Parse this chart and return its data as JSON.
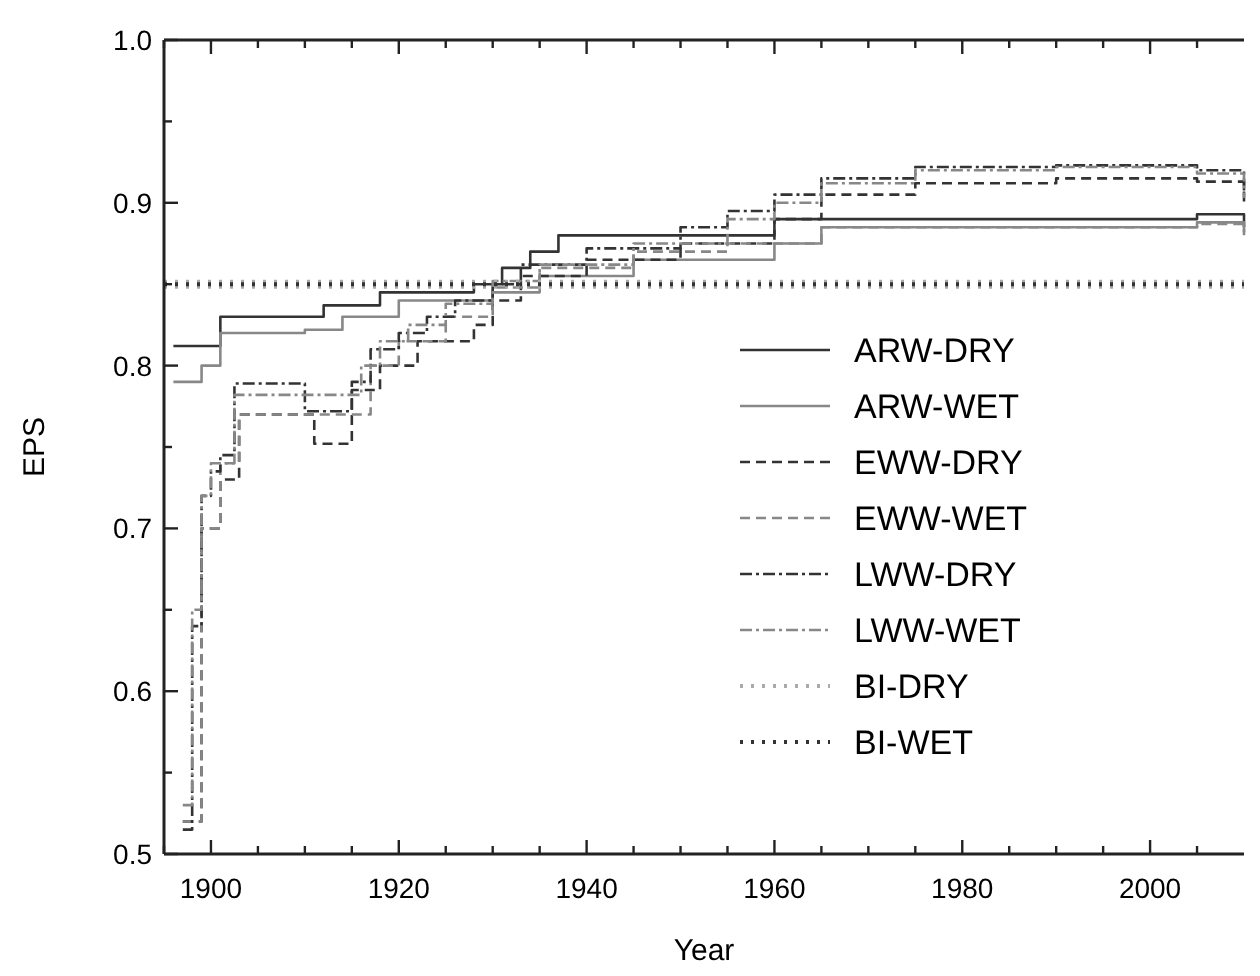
{
  "chart_data": {
    "type": "step",
    "xlabel": "Year",
    "ylabel": "EPS",
    "xlim": [
      1895,
      2010
    ],
    "ylim": [
      0.5,
      1.0
    ],
    "xticks": [
      {
        "value": 1895,
        "label": null
      },
      1900,
      {
        "value": 1905,
        "label": null
      },
      {
        "value": 1910,
        "label": null
      },
      {
        "value": 1915,
        "label": null
      },
      1920,
      {
        "value": 1925,
        "label": null
      },
      {
        "value": 1930,
        "label": null
      },
      {
        "value": 1935,
        "label": null
      },
      1940,
      {
        "value": 1945,
        "label": null
      },
      {
        "value": 1950,
        "label": null
      },
      {
        "value": 1955,
        "label": null
      },
      1960,
      {
        "value": 1965,
        "label": null
      },
      {
        "value": 1970,
        "label": null
      },
      {
        "value": 1975,
        "label": null
      },
      1980,
      {
        "value": 1985,
        "label": null
      },
      {
        "value": 1990,
        "label": null
      },
      {
        "value": 1995,
        "label": null
      },
      2000,
      {
        "value": 2005,
        "label": null
      }
    ],
    "yticks": [
      0.5,
      {
        "value": 0.55,
        "label": null
      },
      0.6,
      {
        "value": 0.65,
        "label": null
      },
      0.7,
      {
        "value": 0.75,
        "label": null
      },
      0.8,
      {
        "value": 0.85,
        "label": null
      },
      0.9,
      {
        "value": 0.95,
        "label": null
      },
      {
        "value": 1.0,
        "label": "1.0"
      }
    ],
    "grid": false,
    "legend": "right",
    "series": [
      {
        "name": "ARW-DRY",
        "color": "#333333",
        "line_style": "solid",
        "x": [
          1896,
          1900,
          1901,
          1910,
          1912,
          1918,
          1928,
          1931,
          1934,
          1937,
          1950,
          1960,
          2005,
          2010
        ],
        "values": [
          0.812,
          0.812,
          0.83,
          0.83,
          0.837,
          0.845,
          0.85,
          0.86,
          0.87,
          0.88,
          0.88,
          0.89,
          0.893,
          0.885
        ]
      },
      {
        "name": "ARW-WET",
        "color": "#888888",
        "line_style": "solid",
        "x": [
          1896,
          1899,
          1901,
          1910,
          1914,
          1920,
          1930,
          1935,
          1945,
          1960,
          1965,
          2005,
          2010
        ],
        "values": [
          0.79,
          0.8,
          0.82,
          0.822,
          0.83,
          0.84,
          0.845,
          0.855,
          0.865,
          0.875,
          0.885,
          0.888,
          0.882
        ]
      },
      {
        "name": "EWW-DRY",
        "color": "#333333",
        "line_style": "dashed",
        "x": [
          1897,
          1899,
          1901,
          1903,
          1910,
          1911,
          1913,
          1915,
          1918,
          1922,
          1928,
          1930,
          1933,
          1940,
          1950,
          1960,
          1965,
          1975,
          1990,
          2005,
          2010
        ],
        "values": [
          0.52,
          0.7,
          0.73,
          0.77,
          0.77,
          0.752,
          0.752,
          0.785,
          0.8,
          0.815,
          0.825,
          0.84,
          0.855,
          0.865,
          0.875,
          0.89,
          0.905,
          0.912,
          0.915,
          0.913,
          0.9
        ]
      },
      {
        "name": "EWW-WET",
        "color": "#888888",
        "line_style": "dashed",
        "x": [
          1897,
          1899,
          1901,
          1903,
          1915,
          1917,
          1920,
          1925,
          1930,
          1935,
          1945,
          1955,
          1965,
          2005,
          2010
        ],
        "values": [
          0.52,
          0.7,
          0.74,
          0.77,
          0.77,
          0.8,
          0.815,
          0.83,
          0.848,
          0.86,
          0.87,
          0.875,
          0.885,
          0.887,
          0.88
        ]
      },
      {
        "name": "LWW-DRY",
        "color": "#333333",
        "line_style": "dashdot",
        "x": [
          1897,
          1898,
          1899,
          1900,
          1901,
          1902.5,
          1909,
          1910,
          1914,
          1915,
          1917,
          1920,
          1923,
          1926,
          1930,
          1933,
          1940,
          1950,
          1955,
          1960,
          1965,
          1975,
          1990,
          2005,
          2010
        ],
        "values": [
          0.515,
          0.64,
          0.72,
          0.735,
          0.745,
          0.789,
          0.789,
          0.772,
          0.772,
          0.79,
          0.81,
          0.82,
          0.83,
          0.84,
          0.85,
          0.862,
          0.872,
          0.885,
          0.895,
          0.905,
          0.915,
          0.922,
          0.923,
          0.92,
          0.905
        ]
      },
      {
        "name": "LWW-WET",
        "color": "#888888",
        "line_style": "dashdot",
        "x": [
          1897,
          1898,
          1899,
          1900,
          1902.5,
          1915,
          1916,
          1918,
          1921,
          1925,
          1930,
          1935,
          1945,
          1955,
          1960,
          1965,
          1975,
          1990,
          2005,
          2010
        ],
        "values": [
          0.53,
          0.65,
          0.72,
          0.74,
          0.782,
          0.782,
          0.8,
          0.815,
          0.825,
          0.838,
          0.852,
          0.862,
          0.875,
          0.89,
          0.9,
          0.912,
          0.92,
          0.922,
          0.918,
          0.903
        ]
      },
      {
        "name": "BI-DRY",
        "color": "#aaaaaa",
        "line_style": "dotted",
        "x": [
          1895,
          2010
        ],
        "values": [
          0.85,
          0.85
        ]
      },
      {
        "name": "BI-WET",
        "color": "#333333",
        "line_style": "dotted",
        "x": [
          1895,
          2010
        ],
        "values": [
          0.85,
          0.85
        ]
      }
    ]
  }
}
